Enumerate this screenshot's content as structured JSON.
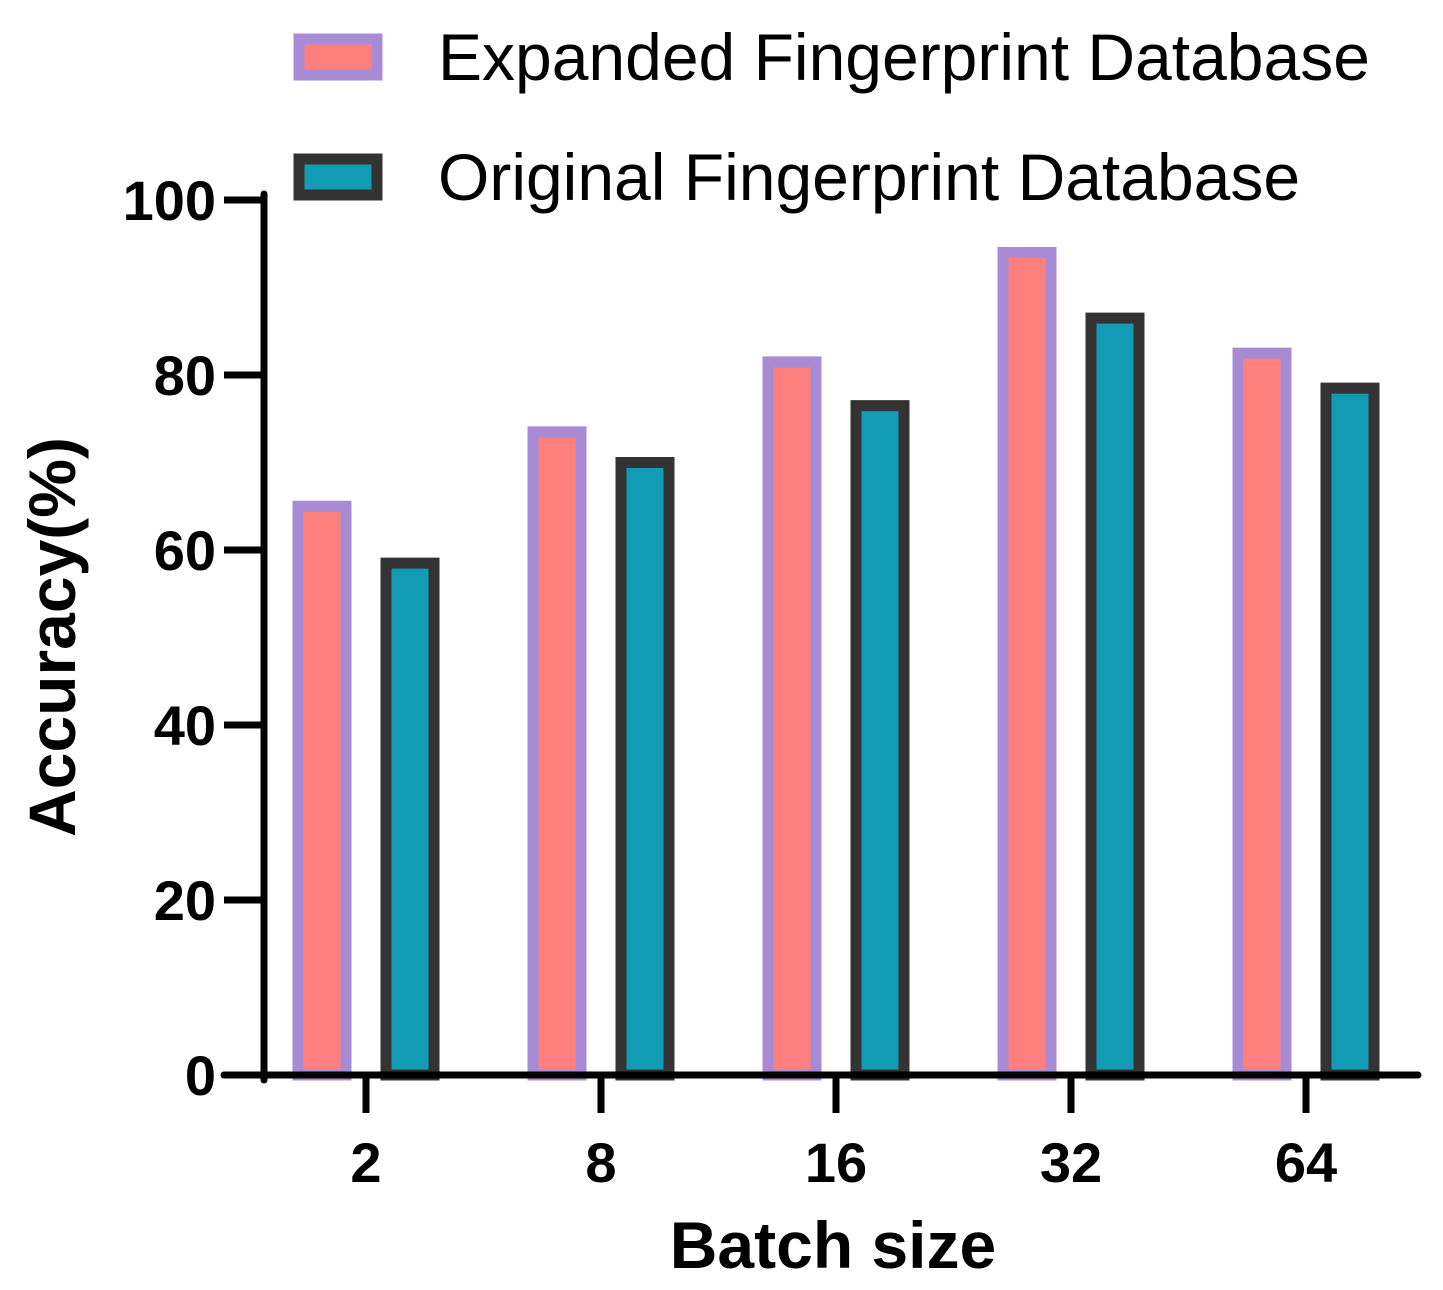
{
  "chart_data": {
    "type": "bar",
    "title": "",
    "xlabel": "Batch size",
    "ylabel": "Accuracy(%)",
    "categories": [
      "2",
      "8",
      "16",
      "32",
      "64"
    ],
    "ylim": [
      0,
      100
    ],
    "yticks": [
      0,
      20,
      40,
      60,
      80,
      100
    ],
    "grid": false,
    "legend_position": "top",
    "series": [
      {
        "name": "Expanded Fingerprint Database",
        "values": [
          65,
          73.5,
          81.5,
          94,
          82.5
        ],
        "fill": "#FF7F7F",
        "stroke": "#A78BD4"
      },
      {
        "name": "Original Fingerprint Database",
        "values": [
          58.5,
          70,
          76.5,
          86.5,
          78.5
        ],
        "fill": "#119BB5",
        "stroke": "#333333"
      }
    ]
  }
}
